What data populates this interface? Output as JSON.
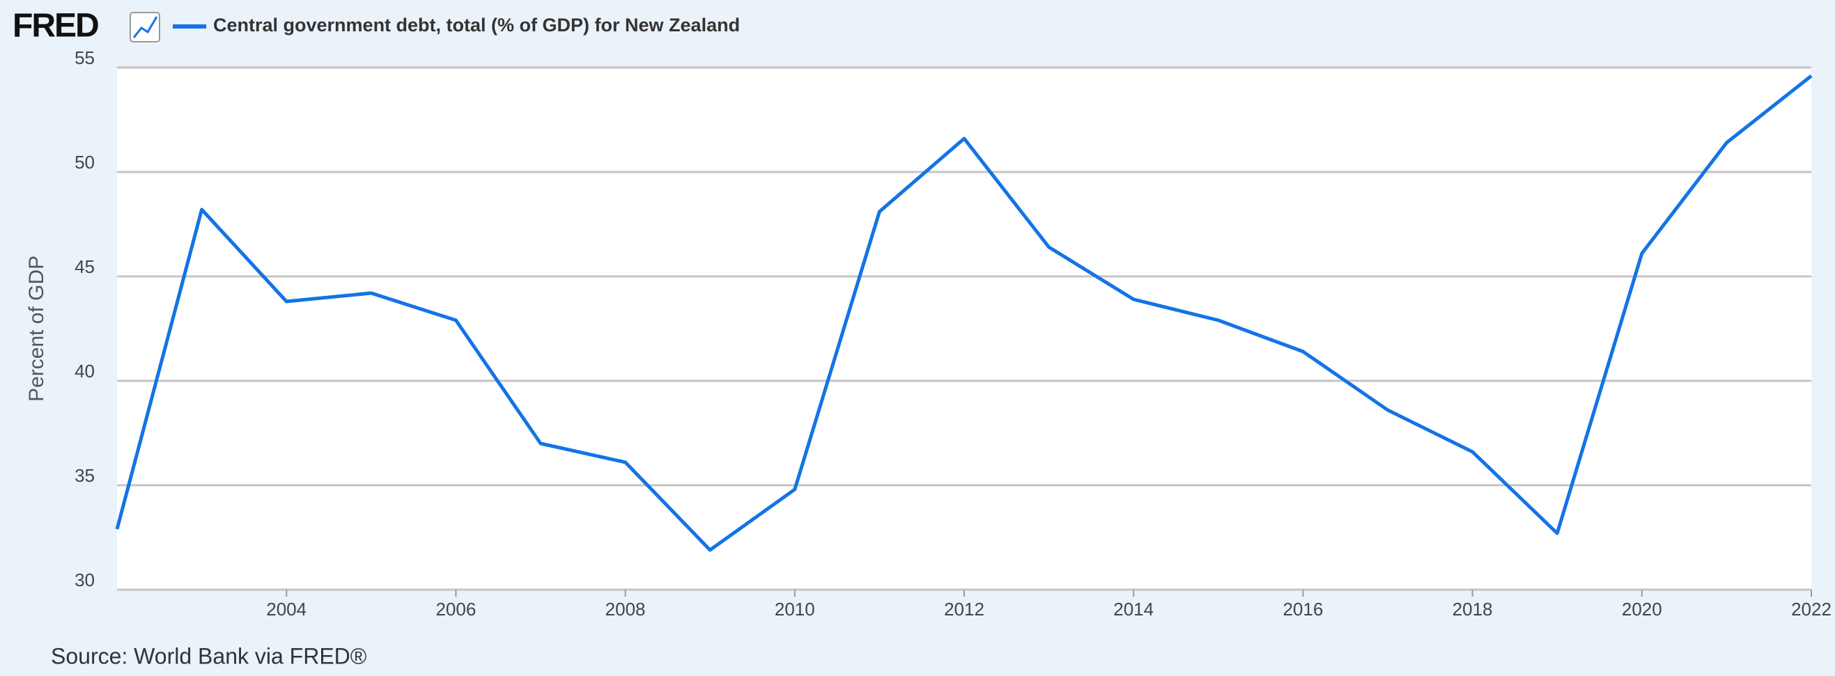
{
  "logo": "FRED",
  "chart_data": {
    "type": "line",
    "y_label": "Percent of GDP",
    "source": "Source: World Bank via FRED®",
    "x": [
      2002,
      2003,
      2004,
      2005,
      2006,
      2007,
      2008,
      2009,
      2010,
      2011,
      2012,
      2013,
      2014,
      2015,
      2016,
      2017,
      2018,
      2019,
      2020,
      2021,
      2022
    ],
    "series": [
      {
        "name": "Central government debt, total (% of GDP) for New Zealand",
        "color": "#1473e6",
        "values": [
          32.9,
          48.2,
          43.8,
          44.2,
          42.9,
          37.0,
          36.1,
          31.9,
          34.8,
          48.1,
          51.6,
          46.4,
          43.9,
          42.9,
          41.4,
          38.6,
          36.6,
          32.7,
          46.1,
          51.4,
          54.6
        ]
      }
    ],
    "xlim": [
      2002,
      2022
    ],
    "xticks": [
      2004,
      2006,
      2008,
      2010,
      2012,
      2014,
      2016,
      2018,
      2020,
      2022
    ],
    "ylim": [
      30,
      55
    ],
    "yticks": [
      30,
      35,
      40,
      45,
      50,
      55
    ],
    "grid": true
  }
}
